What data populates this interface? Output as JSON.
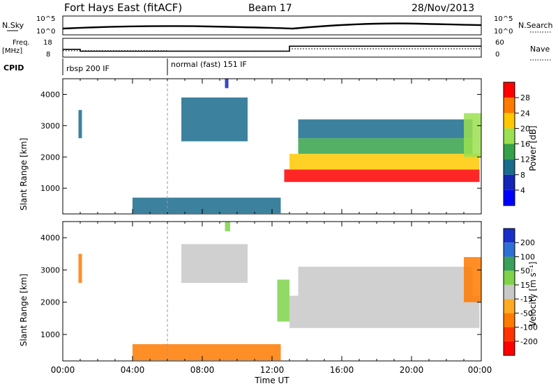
{
  "header": {
    "title": "Fort Hays East (fitACF)",
    "beam": "Beam 17",
    "date": "28/Nov/2013"
  },
  "top_panels": {
    "nsky_label": "N.Sky",
    "nsearch_label": "N.Search",
    "noise_ticks": [
      "10^5",
      "10^0"
    ],
    "freq_label": "Freq.",
    "freq_unit": "[MHz]",
    "freq_ticks": [
      "18",
      "8"
    ],
    "nave_label": "Nave",
    "nave_ticks": [
      "60",
      "0"
    ],
    "cpid_label": "CPID",
    "cpid_segments": [
      "rbsp 200 IF",
      "normal (fast) 151 IF"
    ],
    "freq_steps": [
      {
        "t0": 0.0,
        "t1": 1.0,
        "mhz": 12.0
      },
      {
        "t0": 1.0,
        "t1": 13.0,
        "mhz": 10.5
      },
      {
        "t0": 13.0,
        "t1": 24.0,
        "mhz": 14.5
      }
    ],
    "nave_steps": [
      {
        "t0": 0.0,
        "t1": 6.0,
        "nave": 18
      },
      {
        "t0": 6.0,
        "t1": 13.0,
        "nave": 17
      },
      {
        "t0": 13.0,
        "t1": 24.0,
        "nave": 25
      }
    ]
  },
  "axes": {
    "xlabel": "Time UT",
    "ylabel": "Slant Range [km]",
    "xticks": [
      "00:00",
      "04:00",
      "08:00",
      "12:00",
      "16:00",
      "20:00",
      "00:00"
    ],
    "yticks": [
      "1000",
      "2000",
      "3000",
      "4000"
    ]
  },
  "power_scale": {
    "label": "Power [dB]",
    "ticks": [
      "28",
      "24",
      "20",
      "16",
      "12",
      "8",
      "4"
    ],
    "colors": [
      "#ff0000",
      "#ff7a00",
      "#ffc800",
      "#9be050",
      "#35a24a",
      "#1a6b8c",
      "#1525b8",
      "#0000ff"
    ]
  },
  "velocity_scale": {
    "label": "Velocity [m s⁻¹]",
    "ticks": [
      "200",
      "100",
      "50",
      "15",
      "-15",
      "-50",
      "-100",
      "-200"
    ],
    "colors": [
      "#1a2fc8",
      "#2d6fd6",
      "#3aa05a",
      "#7ed34a",
      "#c8c8c8",
      "#ffaa20",
      "#ff7a00",
      "#ff3300",
      "#ff0000"
    ]
  },
  "chart_data": {
    "type": "heatmap",
    "title": "Fort Hays East (fitACF)",
    "xlabel": "Time UT",
    "ylabel": "Slant Range [km]",
    "xlim": [
      0,
      24
    ],
    "ylim": [
      180,
      4500
    ],
    "vertical_marker_hour": 6.0,
    "panels": [
      {
        "name": "Power [dB]",
        "range": [
          0,
          30
        ],
        "regions": [
          {
            "t0": 0.9,
            "t1": 1.1,
            "r0": 2600,
            "r1": 3500,
            "value": 10
          },
          {
            "t0": 6.8,
            "t1": 10.6,
            "r0": 2500,
            "r1": 3900,
            "value": 10
          },
          {
            "t0": 9.3,
            "t1": 9.5,
            "r0": 4200,
            "r1": 4500,
            "value": 6
          },
          {
            "t0": 12.7,
            "t1": 23.9,
            "r0": 1200,
            "r1": 1600,
            "value": 27
          },
          {
            "t0": 13.0,
            "t1": 23.9,
            "r0": 1600,
            "r1": 2100,
            "value": 20
          },
          {
            "t0": 13.5,
            "t1": 23.5,
            "r0": 2100,
            "r1": 2600,
            "value": 12
          },
          {
            "t0": 13.5,
            "t1": 23.5,
            "r0": 2600,
            "r1": 3200,
            "value": 9
          },
          {
            "t0": 23.0,
            "t1": 24.0,
            "r0": 2000,
            "r1": 3400,
            "value": 18
          },
          {
            "t0": 4.0,
            "t1": 12.5,
            "r0": 200,
            "r1": 700,
            "value": 8
          }
        ]
      },
      {
        "name": "Velocity [m s-1]",
        "range": [
          -200,
          200
        ],
        "regions": [
          {
            "t0": 0.9,
            "t1": 1.1,
            "r0": 2600,
            "r1": 3500,
            "value": -50
          },
          {
            "t0": 6.8,
            "t1": 10.6,
            "r0": 2600,
            "r1": 3800,
            "value": 0
          },
          {
            "t0": 9.3,
            "t1": 9.6,
            "r0": 4200,
            "r1": 4500,
            "value": 30
          },
          {
            "t0": 12.3,
            "t1": 13.0,
            "r0": 1400,
            "r1": 2700,
            "value": 30
          },
          {
            "t0": 13.0,
            "t1": 23.9,
            "r0": 1200,
            "r1": 2200,
            "value": 0
          },
          {
            "t0": 13.5,
            "t1": 23.5,
            "r0": 2200,
            "r1": 3100,
            "value": 0
          },
          {
            "t0": 23.0,
            "t1": 24.0,
            "r0": 2000,
            "r1": 3400,
            "value": -50
          },
          {
            "t0": 4.0,
            "t1": 12.5,
            "r0": 200,
            "r1": 700,
            "value": -50
          }
        ]
      }
    ]
  }
}
